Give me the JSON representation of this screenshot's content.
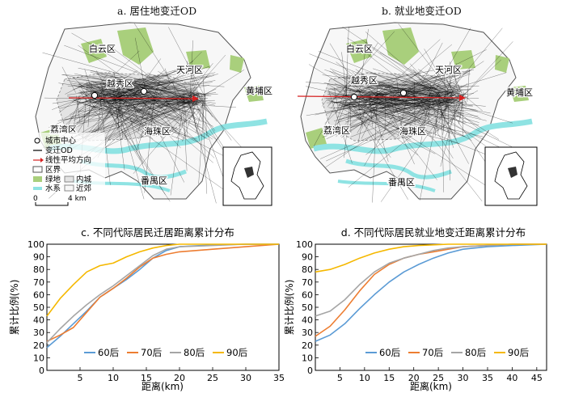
{
  "map_a": {
    "title": "a. 居住地变迁OD",
    "district_labels": [
      "白云区",
      "天河区",
      "黄埔区",
      "越秀区",
      "荔湾区",
      "海珠区",
      "番禺区"
    ],
    "legend": {
      "city_center": "城市中心",
      "od": "变迁OD",
      "linear_direction": "线性平均方向",
      "district_boundary": "区界",
      "green": "绿地",
      "water": "水系",
      "inner": "内城",
      "suburb": "近郊"
    },
    "scale": {
      "zero": "0",
      "max": "4 km"
    }
  },
  "map_b": {
    "title": "b. 就业地变迁OD",
    "district_labels": [
      "白云区",
      "天河区",
      "黄埔区",
      "越秀区",
      "荔湾区",
      "海珠区",
      "番禺区"
    ]
  },
  "colors": {
    "60后": "#5b9bd5",
    "70后": "#ed7d31",
    "80后": "#a5a5a5",
    "90后": "#f5b800",
    "green": "#a9cf7c",
    "water": "#8fe3e3",
    "inner": "#d9d9d9",
    "direction": "#d62020"
  },
  "chart_data": [
    {
      "type": "line",
      "title": "c. 不同代际居民迁居距离累计分布",
      "xlabel": "距离(km)",
      "ylabel": "累计比例(%)",
      "xlim": [
        0,
        35
      ],
      "ylim": [
        0,
        100
      ],
      "xticks": [
        5,
        10,
        15,
        20,
        25,
        30,
        35
      ],
      "yticks": [
        0,
        10,
        20,
        30,
        40,
        50,
        60,
        70,
        80,
        90,
        100
      ],
      "grid": false,
      "legend": "bottom",
      "series": [
        {
          "name": "60后",
          "x": [
            0,
            2,
            4,
            6,
            8,
            10,
            12,
            14,
            16,
            18,
            20,
            25,
            30,
            35
          ],
          "y": [
            18,
            27,
            37,
            47,
            58,
            65,
            72,
            80,
            89,
            95,
            98,
            99.5,
            100,
            100
          ]
        },
        {
          "name": "70后",
          "x": [
            0,
            2,
            4,
            6,
            8,
            10,
            12,
            14,
            16,
            18,
            20,
            25,
            30,
            35
          ],
          "y": [
            23,
            28,
            34,
            46,
            58,
            65,
            73,
            82,
            89,
            92,
            94,
            96,
            98,
            100
          ]
        },
        {
          "name": "80后",
          "x": [
            0,
            2,
            4,
            6,
            8,
            10,
            12,
            14,
            16,
            18,
            20,
            25,
            30,
            35
          ],
          "y": [
            22,
            33,
            43,
            52,
            60,
            67,
            75,
            83,
            91,
            96,
            98,
            99,
            100,
            100
          ]
        },
        {
          "name": "90后",
          "x": [
            0,
            2,
            4,
            6,
            8,
            10,
            12,
            14,
            16,
            18,
            20,
            25,
            30,
            35
          ],
          "y": [
            43,
            57,
            68,
            78,
            83,
            85,
            90,
            94,
            97,
            99,
            100,
            100,
            100,
            100
          ]
        }
      ]
    },
    {
      "type": "line",
      "title": "d. 不同代际居民就业地变迁距离累计分布",
      "xlabel": "距离(km)",
      "ylabel": "累计比例(%)",
      "xlim": [
        0,
        47
      ],
      "ylim": [
        0,
        100
      ],
      "xticks": [
        5,
        10,
        15,
        20,
        25,
        30,
        35,
        40,
        45
      ],
      "yticks": [
        0,
        10,
        20,
        30,
        40,
        50,
        60,
        70,
        80,
        90,
        100
      ],
      "grid": false,
      "legend": "bottom",
      "series": [
        {
          "name": "60后",
          "x": [
            0,
            3,
            6,
            9,
            12,
            15,
            18,
            21,
            24,
            27,
            30,
            35,
            40,
            47
          ],
          "y": [
            23,
            28,
            37,
            49,
            60,
            70,
            78,
            84,
            89,
            93,
            96,
            98,
            99,
            100
          ]
        },
        {
          "name": "70后",
          "x": [
            0,
            3,
            6,
            9,
            12,
            15,
            18,
            21,
            24,
            27,
            30,
            35,
            40,
            47
          ],
          "y": [
            27,
            35,
            48,
            63,
            76,
            84,
            89,
            92,
            94,
            96,
            98,
            99,
            100,
            100
          ]
        },
        {
          "name": "80后",
          "x": [
            0,
            3,
            6,
            9,
            12,
            15,
            18,
            21,
            24,
            27,
            30,
            35,
            40,
            47
          ],
          "y": [
            43,
            47,
            56,
            68,
            78,
            85,
            89,
            92,
            95,
            97,
            98,
            99,
            100,
            100
          ]
        },
        {
          "name": "90后",
          "x": [
            0,
            3,
            6,
            9,
            12,
            15,
            18,
            21,
            24,
            27,
            30,
            35,
            40,
            47
          ],
          "y": [
            78,
            80,
            84,
            89,
            93,
            96,
            98,
            99,
            99.5,
            100,
            100,
            100,
            100,
            100
          ]
        }
      ]
    }
  ]
}
